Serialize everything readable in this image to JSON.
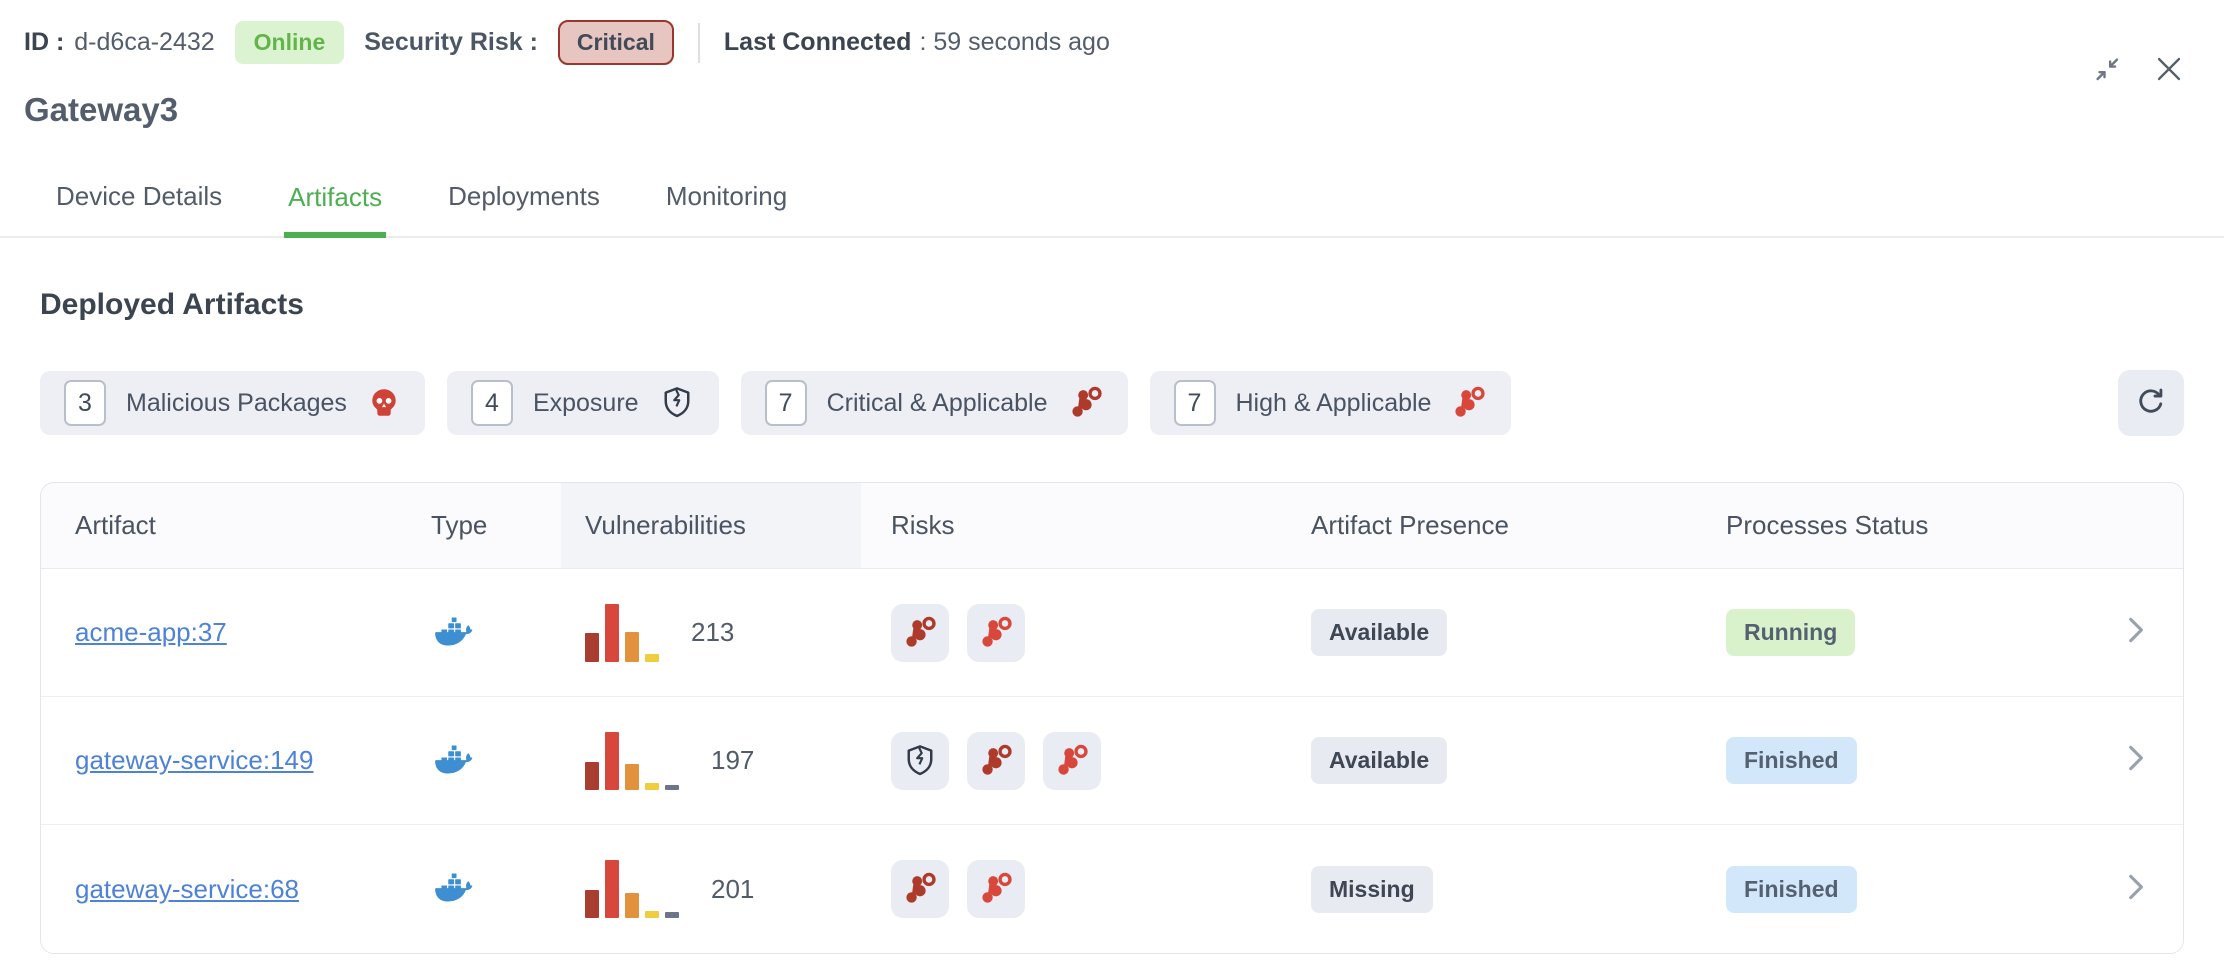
{
  "header": {
    "id_label": "ID :",
    "id_value": "d-d6ca-2432",
    "online_badge": "Online",
    "security_risk_label": "Security Risk :",
    "security_risk_value": "Critical",
    "last_connected_label": "Last Connected",
    "last_connected_value": ": 59 seconds ago",
    "title": "Gateway3"
  },
  "tabs": [
    {
      "label": "Device Details",
      "active": false
    },
    {
      "label": "Artifacts",
      "active": true
    },
    {
      "label": "Deployments",
      "active": false
    },
    {
      "label": "Monitoring",
      "active": false
    }
  ],
  "section_title": "Deployed Artifacts",
  "filters": [
    {
      "count": "3",
      "label": "Malicious Packages",
      "icon": "skull"
    },
    {
      "count": "4",
      "label": "Exposure",
      "icon": "shield-crack"
    },
    {
      "count": "7",
      "label": "Critical & Applicable",
      "icon": "applicable-critical"
    },
    {
      "count": "7",
      "label": "High & Applicable",
      "icon": "applicable-high"
    }
  ],
  "table": {
    "columns": {
      "artifact": "Artifact",
      "type": "Type",
      "vulnerabilities": "Vulnerabilities",
      "risks": "Risks",
      "presence": "Artifact Presence",
      "status": "Processes Status"
    },
    "rows": [
      {
        "artifact": "acme-app:37",
        "type_icon": "docker",
        "vuln_count": "213",
        "vuln_bars": [
          {
            "color": "#a93d30",
            "pct": 50
          },
          {
            "color": "#d8473c",
            "pct": 100
          },
          {
            "color": "#e2923c",
            "pct": 52
          },
          {
            "color": "#f0cd3f",
            "pct": 14
          }
        ],
        "risk_icons": [
          "applicable-critical",
          "applicable-high"
        ],
        "presence": "Available",
        "status": "Running",
        "status_kind": "running"
      },
      {
        "artifact": "gateway-service:149",
        "type_icon": "docker",
        "vuln_count": "197",
        "vuln_bars": [
          {
            "color": "#a93d30",
            "pct": 48
          },
          {
            "color": "#d8473c",
            "pct": 100
          },
          {
            "color": "#e2923c",
            "pct": 45
          },
          {
            "color": "#f0cd3f",
            "pct": 12
          },
          {
            "color": "#6d7689",
            "pct": 8
          }
        ],
        "risk_icons": [
          "shield-crack",
          "applicable-critical",
          "applicable-high"
        ],
        "presence": "Available",
        "status": "Finished",
        "status_kind": "finished"
      },
      {
        "artifact": "gateway-service:68",
        "type_icon": "docker",
        "vuln_count": "201",
        "vuln_bars": [
          {
            "color": "#a93d30",
            "pct": 48
          },
          {
            "color": "#d8473c",
            "pct": 100
          },
          {
            "color": "#e2923c",
            "pct": 43
          },
          {
            "color": "#f0cd3f",
            "pct": 12
          },
          {
            "color": "#6d7689",
            "pct": 10
          }
        ],
        "risk_icons": [
          "applicable-critical",
          "applicable-high"
        ],
        "presence": "Missing",
        "status": "Finished",
        "status_kind": "finished"
      }
    ]
  },
  "colors": {
    "accent_green": "#4caf50",
    "online_bg": "#dcf3d2",
    "online_text": "#63b44a",
    "critical_bg": "#e7c5c1",
    "critical_border": "#9c352c",
    "link_blue": "#4d82d6",
    "docker_blue": "#3d8fd1",
    "applicable_critical": "#ae3a2c",
    "applicable_high": "#d8473c",
    "chip_bg": "#edeff5",
    "badge_gray_bg": "#e8eaf1",
    "badge_green_bg": "#d9f2cc",
    "badge_blue_bg": "#d2e8fa"
  }
}
